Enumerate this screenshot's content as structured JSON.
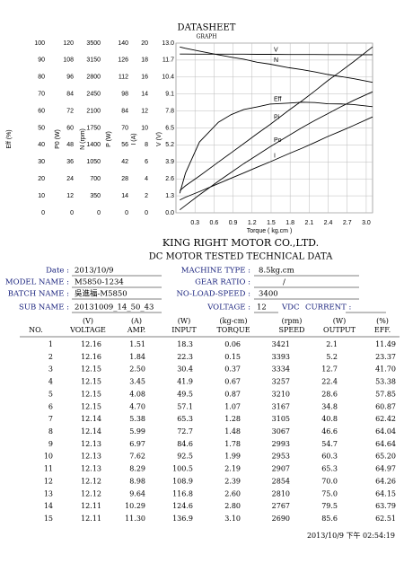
{
  "header": {
    "title": "DATASHEET",
    "subtitle": "GRAPH"
  },
  "graph": {
    "type": "line",
    "color": "#000000",
    "grid": true,
    "xlabel": "Torque ( kg.cm )",
    "xlim": [
      0,
      3.1
    ],
    "xticks": [
      0.3,
      0.6,
      0.9,
      1.2,
      1.5,
      1.8,
      2.1,
      2.4,
      2.7,
      {
        "value": 3,
        "label": "3.0"
      }
    ],
    "axes": [
      {
        "label": "Eff (%)",
        "line_label": "Eff",
        "ylim": [
          0,
          100
        ],
        "yticks": [
          0,
          10,
          20,
          30,
          40,
          50,
          60,
          70,
          80,
          90,
          100
        ]
      },
      {
        "label": "P0 (W)",
        "line_label": "Po",
        "ylim": [
          0,
          120
        ],
        "yticks": [
          0,
          12,
          24,
          36,
          48,
          60,
          72,
          84,
          96,
          108,
          120
        ]
      },
      {
        "label": "N (rpm)",
        "line_label": "N",
        "ylim": [
          0,
          3500
        ],
        "yticks": [
          0,
          350,
          700,
          1050,
          1400,
          1750,
          2100,
          2450,
          2800,
          3150,
          3500
        ]
      },
      {
        "label": "P (W)",
        "line_label": "Pi",
        "ylim": [
          0,
          140
        ],
        "yticks": [
          0,
          14,
          28,
          42,
          56,
          70,
          84,
          98,
          112,
          126,
          140
        ]
      },
      {
        "label": "I (A)",
        "line_label": "I",
        "ylim": [
          0,
          20
        ],
        "yticks": [
          0,
          2,
          4,
          6,
          8,
          10,
          12,
          14,
          16,
          18,
          20
        ]
      },
      {
        "label": "V (V)",
        "line_label": "V",
        "ylim": [
          0,
          13
        ],
        "yticks": [
          {
            "value": 0,
            "label": "0.0"
          },
          1.3,
          2.6,
          3.9,
          5.2,
          6.5,
          7.8,
          9.1,
          10.4,
          11.7,
          {
            "value": 13,
            "label": "13.0"
          }
        ]
      }
    ]
  },
  "company": "KING RIGHT MOTOR CO.,LTD.",
  "report_title": "DC MOTOR TESTED TECHNICAL DATA",
  "info": {
    "date_label": "Date :",
    "date": "2013/10/9",
    "model_label": "MODEL NAME :",
    "model": "M5850-1234",
    "batch_label": "BATCH NAME :",
    "batch": "吳進福-M5850",
    "sub_label": "SUB NAME :",
    "sub": "20131009_14_50_43",
    "machine_label": "MACHINE TYPE :",
    "machine": "8.5kg.cm",
    "gear_label": "GEAR RATIO :",
    "gear": "/",
    "noload_label": "NO-LOAD-SPEED :",
    "noload": "3400",
    "voltage_label": "VOLTAGE :",
    "voltage": "12",
    "voltage_unit": "VDC",
    "current_label": "CURRENT :"
  },
  "table": {
    "columns": [
      {
        "name": "NO."
      },
      {
        "unit": "(V)",
        "name": "VOLTAGE"
      },
      {
        "unit": "(A)",
        "name": "AMP."
      },
      {
        "unit": "(W)",
        "name": "INPUT"
      },
      {
        "unit": "(kg-cm)",
        "name": "TORQUE"
      },
      {
        "unit": "(rpm)",
        "name": "SPEED"
      },
      {
        "unit": "(W)",
        "name": "OUTPUT"
      },
      {
        "unit": "(%)",
        "name": "EFF."
      }
    ],
    "rows": [
      [
        "1",
        "12.16",
        "1.51",
        "18.3",
        "0.06",
        "3421",
        "2.1",
        "11.49"
      ],
      [
        "2",
        "12.16",
        "1.84",
        "22.3",
        "0.15",
        "3393",
        "5.2",
        "23.37"
      ],
      [
        "3",
        "12.15",
        "2.50",
        "30.4",
        "0.37",
        "3334",
        "12.7",
        "41.70"
      ],
      [
        "4",
        "12.15",
        "3.45",
        "41.9",
        "0.67",
        "3257",
        "22.4",
        "53.38"
      ],
      [
        "5",
        "12.15",
        "4.08",
        "49.5",
        "0.87",
        "3210",
        "28.6",
        "57.85"
      ],
      [
        "6",
        "12.15",
        "4.70",
        "57.1",
        "1.07",
        "3167",
        "34.8",
        "60.87"
      ],
      [
        "7",
        "12.14",
        "5.38",
        "65.3",
        "1.28",
        "3105",
        "40.8",
        "62.42"
      ],
      [
        "8",
        "12.14",
        "5.99",
        "72.7",
        "1.48",
        "3067",
        "46.6",
        "64.04"
      ],
      [
        "9",
        "12.13",
        "6.97",
        "84.6",
        "1.78",
        "2993",
        "54.7",
        "64.64"
      ],
      [
        "10",
        "12.13",
        "7.62",
        "92.5",
        "1.99",
        "2953",
        "60.3",
        "65.20"
      ],
      [
        "11",
        "12.13",
        "8.29",
        "100.5",
        "2.19",
        "2907",
        "65.3",
        "64.97"
      ],
      [
        "12",
        "12.12",
        "8.98",
        "108.9",
        "2.39",
        "2854",
        "70.0",
        "64.26"
      ],
      [
        "13",
        "12.12",
        "9.64",
        "116.8",
        "2.60",
        "2810",
        "75.0",
        "64.15"
      ],
      [
        "14",
        "12.11",
        "10.29",
        "124.6",
        "2.80",
        "2767",
        "79.5",
        "63.79"
      ],
      [
        "15",
        "12.11",
        "11.30",
        "136.9",
        "3.10",
        "2690",
        "85.6",
        "62.51"
      ]
    ]
  },
  "footer": "2013/10/9 下午 02:54:19"
}
